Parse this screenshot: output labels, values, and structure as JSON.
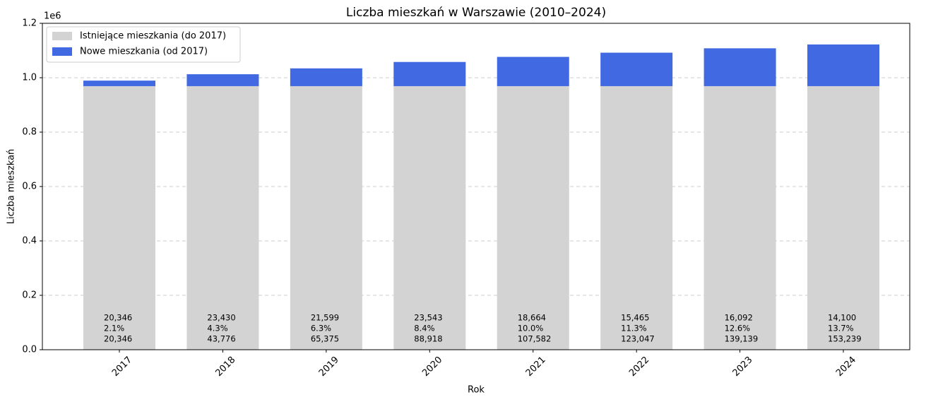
{
  "chart_data": {
    "type": "bar",
    "stacked": true,
    "title": "Liczba mieszkań w Warszawie (2010–2024)",
    "x_label": "Rok",
    "y_label": "Liczba mieszkań",
    "y_offset_label": "1e6",
    "categories": [
      "2017",
      "2018",
      "2019",
      "2020",
      "2021",
      "2022",
      "2023",
      "2024"
    ],
    "series": [
      {
        "name": "Istniejące mieszkania (do 2017)",
        "color": "#d3d3d3",
        "values": [
          969000,
          969000,
          969000,
          969000,
          969000,
          969000,
          969000,
          969000
        ]
      },
      {
        "name": "Nowe mieszkania (od 2017)",
        "color": "#4169e1",
        "values": [
          20346,
          43776,
          65375,
          88918,
          107582,
          123047,
          139139,
          153239
        ],
        "value_labels": [
          "20,346",
          "43,776",
          "65,375",
          "88,918",
          "107,582",
          "123,047",
          "139,139",
          "153,239"
        ]
      }
    ],
    "annual_new": {
      "values": [
        20346,
        23430,
        21599,
        23543,
        18664,
        15465,
        16092,
        14100
      ],
      "value_labels": [
        "20,346",
        "23,430",
        "21,599",
        "23,543",
        "18,664",
        "15,465",
        "16,092",
        "14,100"
      ]
    },
    "new_share": {
      "values": [
        2.1,
        4.3,
        6.3,
        8.4,
        10.0,
        11.3,
        12.6,
        13.7
      ],
      "value_labels": [
        "2.1%",
        "4.3%",
        "6.3%",
        "8.4%",
        "10.0%",
        "11.3%",
        "12.6%",
        "13.7%"
      ]
    },
    "ylim": [
      0,
      1200000
    ],
    "yticks": [
      {
        "value": 0,
        "label": "0.0"
      },
      {
        "value": 200000,
        "label": "0.2"
      },
      {
        "value": 400000,
        "label": "0.4"
      },
      {
        "value": 600000,
        "label": "0.6"
      },
      {
        "value": 800000,
        "label": "0.8"
      },
      {
        "value": 1000000,
        "label": "1.0"
      },
      {
        "value": 1200000,
        "label": "1.2"
      }
    ],
    "grid": true,
    "legend": "upper-left"
  }
}
